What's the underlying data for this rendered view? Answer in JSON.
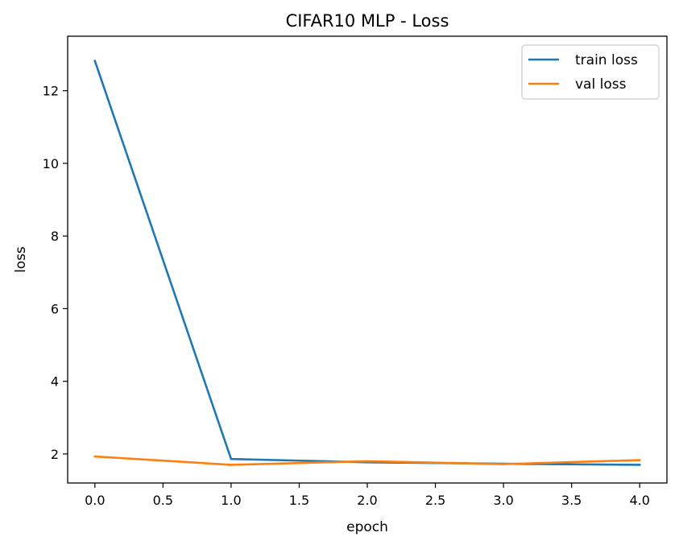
{
  "chart_data": {
    "type": "line",
    "title": "CIFAR10 MLP - Loss",
    "xlabel": "epoch",
    "ylabel": "loss",
    "x": [
      0,
      1,
      2,
      3,
      4
    ],
    "xlim": [
      -0.2,
      4.2
    ],
    "ylim": [
      1.2,
      13.5
    ],
    "xticks": [
      0.0,
      0.5,
      1.0,
      1.5,
      2.0,
      2.5,
      3.0,
      3.5,
      4.0
    ],
    "xtick_labels": [
      "0.0",
      "0.5",
      "1.0",
      "1.5",
      "2.0",
      "2.5",
      "3.0",
      "3.5",
      "4.0"
    ],
    "yticks": [
      2,
      4,
      6,
      8,
      10,
      12
    ],
    "ytick_labels": [
      "2",
      "4",
      "6",
      "8",
      "10",
      "12"
    ],
    "grid": false,
    "legend_position": "top-right",
    "series": [
      {
        "name": "train loss",
        "color": "#1f77b4",
        "values": [
          12.82,
          1.86,
          1.77,
          1.73,
          1.7
        ]
      },
      {
        "name": "val loss",
        "color": "#ff7f0e",
        "values": [
          1.93,
          1.7,
          1.8,
          1.72,
          1.83
        ]
      }
    ]
  }
}
